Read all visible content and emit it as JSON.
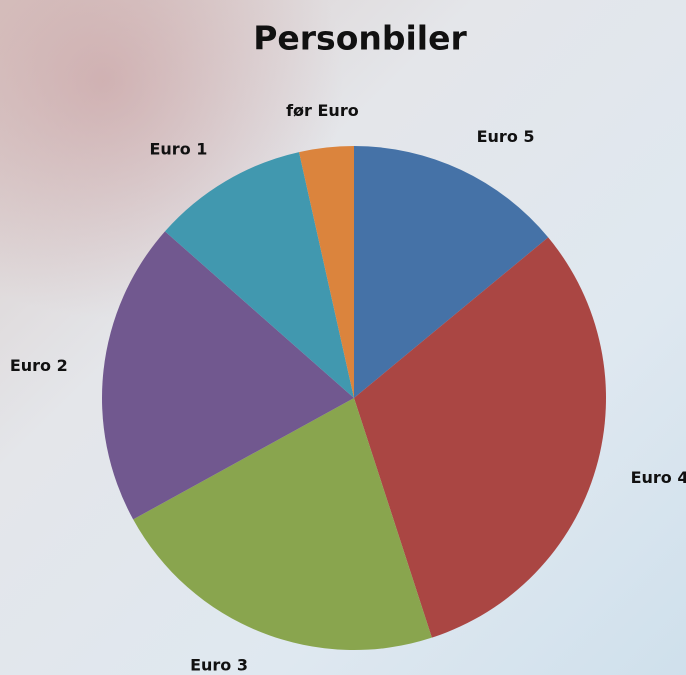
{
  "chart_data": {
    "type": "pie",
    "title": "Personbiler",
    "categories": [
      "Euro 5",
      "Euro 4",
      "Euro 3",
      "Euro 2",
      "Euro 1",
      "før Euro"
    ],
    "values": [
      14,
      31,
      22,
      19.5,
      10,
      3.5
    ],
    "colors": [
      "#4572a7",
      "#aa4643",
      "#89a54e",
      "#71588f",
      "#4198af",
      "#db843d"
    ]
  }
}
